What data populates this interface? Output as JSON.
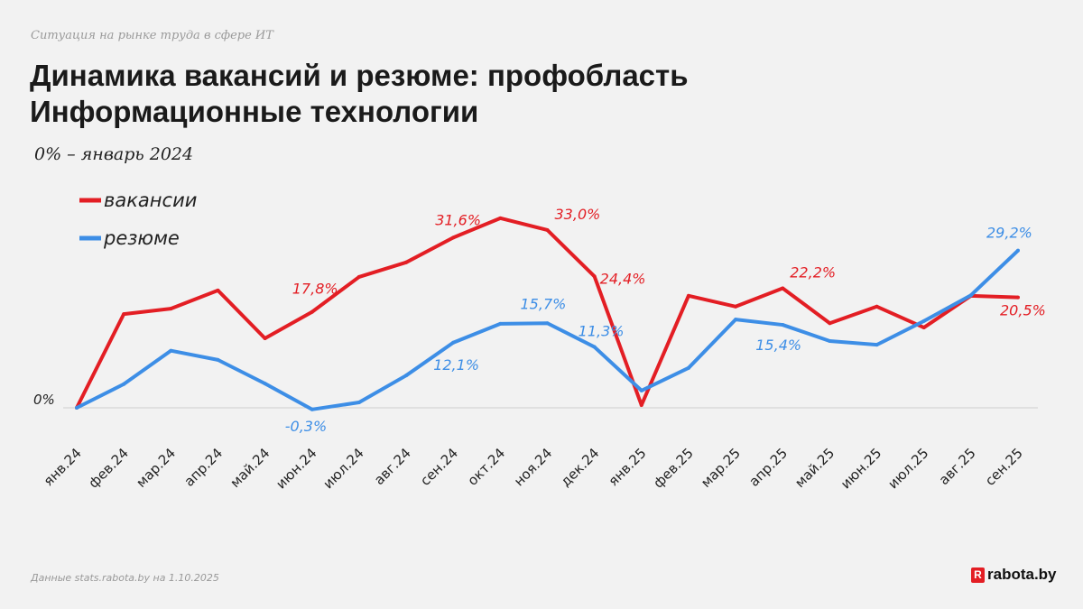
{
  "header": {
    "supertitle": "Ситуация на рынке труда в сфере ИТ",
    "title_line1": "Динамика вакансий и резюме: профобласть",
    "title_line2": "Информационные технологии",
    "note": "0% – январь 2024"
  },
  "footer": {
    "source": "Данные stats.rabota.by на 1.10.2025",
    "logo_letter": "R",
    "logo_text": "rabota.by"
  },
  "chart_data": {
    "type": "line",
    "title": "",
    "xlabel": "",
    "ylabel": "",
    "ylim": [
      -2,
      36
    ],
    "yticks": [
      "0%"
    ],
    "grid": false,
    "legend": "top-left",
    "categories": [
      "янв.24",
      "фев.24",
      "мар.24",
      "апр.24",
      "май.24",
      "июн.24",
      "июл.24",
      "авг.24",
      "сен.24",
      "окт.24",
      "ноя.24",
      "дек.24",
      "янв.25",
      "фев.25",
      "мар.25",
      "апр.25",
      "май.25",
      "июн.25",
      "июл.25",
      "авг.25",
      "сен.25"
    ],
    "series": [
      {
        "name": "вакансии",
        "color": "#e31e24",
        "values": [
          0,
          17.4,
          18.4,
          21.8,
          12.9,
          17.8,
          24.3,
          27.0,
          31.6,
          35.2,
          33.0,
          24.4,
          0.5,
          20.8,
          18.8,
          22.2,
          15.7,
          18.8,
          14.9,
          20.8,
          20.5
        ],
        "labels": [
          {
            "i": 5,
            "text": "17,8%"
          },
          {
            "i": 8,
            "text": "31,6%"
          },
          {
            "i": 10,
            "text": "33,0%"
          },
          {
            "i": 11,
            "text": "24,4%"
          },
          {
            "i": 15,
            "text": "22,2%"
          },
          {
            "i": 20,
            "text": "20,5%"
          }
        ]
      },
      {
        "name": "резюме",
        "color": "#3d8ee6",
        "values": [
          0,
          4.4,
          10.6,
          8.9,
          4.5,
          -0.3,
          1.0,
          6.0,
          12.1,
          15.6,
          15.7,
          11.3,
          3.2,
          7.4,
          16.4,
          15.4,
          12.4,
          11.7,
          16.1,
          20.9,
          29.2
        ],
        "labels": [
          {
            "i": 5,
            "text": "-0,3%"
          },
          {
            "i": 8,
            "text": "12,1%"
          },
          {
            "i": 10,
            "text": "15,7%"
          },
          {
            "i": 11,
            "text": "11,3%"
          },
          {
            "i": 15,
            "text": "15,4%"
          },
          {
            "i": 20,
            "text": "29,2%"
          }
        ]
      }
    ]
  }
}
